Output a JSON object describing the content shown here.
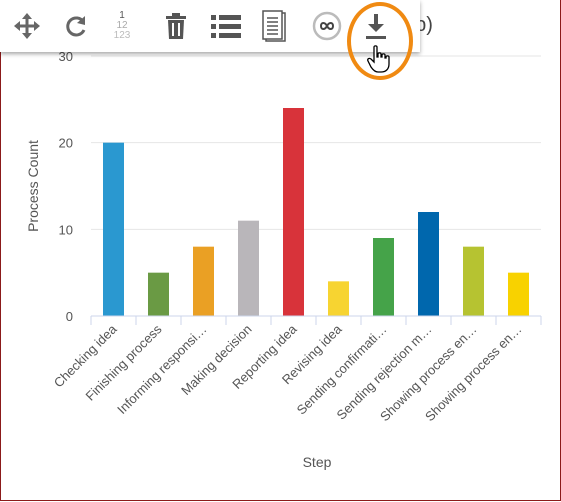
{
  "toolbar": {
    "icons": [
      "move-icon",
      "refresh-icon",
      "row-number-icon",
      "delete-icon",
      "list-icon",
      "document-icon",
      "infinity-icon",
      "download-icon"
    ],
    "row_numbers": [
      "1",
      "12",
      "123"
    ],
    "title_tail": "ep)"
  },
  "colors": {
    "highlight": "#f08a12",
    "frame": "#8b1a1a",
    "bars": [
      "#2a98d0",
      "#6a9a44",
      "#eaa024",
      "#b9b6ba",
      "#d8333a",
      "#f7d431",
      "#45a349",
      "#0067ad",
      "#b6c331",
      "#f8d200"
    ]
  },
  "chart_data": {
    "type": "bar",
    "categories": [
      "Checking idea",
      "Finishing process",
      "Informing responsi…",
      "Making decision",
      "Reporting idea",
      "Revising idea",
      "Sending confirmati…",
      "Sending rejection m…",
      "Showing process en…",
      "Showing process en…"
    ],
    "values": [
      20,
      5,
      8,
      11,
      24,
      4,
      9,
      12,
      8,
      5
    ],
    "xlabel": "Step",
    "ylabel": "Process Count",
    "yticks": [
      0,
      10,
      20,
      30
    ],
    "ylim": [
      0,
      30
    ],
    "grid": true,
    "legend": "none"
  }
}
